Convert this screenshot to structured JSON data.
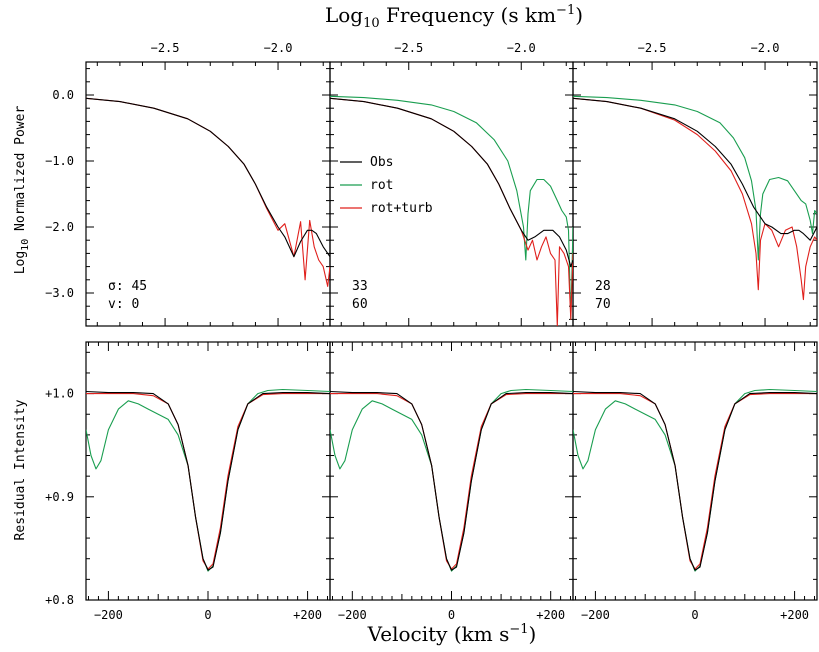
{
  "chart_data": {
    "type": "line",
    "top_axis_label": "Log10 Frequency (s km−1)",
    "top_axis_label_parts": {
      "pre": "Log",
      "sub": "10",
      "mid": " Frequency (s km",
      "sup": "−1",
      "post": ")"
    },
    "bottom_axis_label": "Velocity (km s−1)",
    "bottom_axis_label_parts": {
      "pre": "Velocity (km s",
      "sup": "−1",
      "post": ")"
    },
    "top_ylabel": "Log10 Normalized Power",
    "top_ylabel_parts": {
      "pre": "Log",
      "sub": "10",
      "post": " Normalized Power"
    },
    "bottom_ylabel": "Residual Intensity",
    "freq_xlim": [
      -2.85,
      -1.77
    ],
    "freq_xticks": [
      -2.5,
      -2.0
    ],
    "freq_xtick_labels": [
      "−2.5",
      "−2.0"
    ],
    "power_ylim": [
      -3.5,
      0.5
    ],
    "power_yticks": [
      0.0,
      -1.0,
      -2.0,
      -3.0
    ],
    "power_ytick_labels": [
      "0.0",
      "−1.0",
      "−2.0",
      "−3.0"
    ],
    "vel_xlim": [
      -245,
      245
    ],
    "vel_xticks": [
      -200,
      0,
      200
    ],
    "vel_xtick_labels": [
      "−200",
      "0",
      "+200"
    ],
    "intensity_ylim": [
      0.8,
      1.05
    ],
    "intensity_yticks": [
      0.8,
      0.9,
      1.0
    ],
    "intensity_ytick_labels": [
      "+0.8",
      "+0.9",
      "+1.0"
    ],
    "legend": {
      "placement": "middle panel, center-left",
      "entries": [
        {
          "label": "Obs",
          "color": "#000000"
        },
        {
          "label": "rot",
          "color": "#1a9e50"
        },
        {
          "label": "rot+turb",
          "color": "#e0201c"
        }
      ]
    },
    "panels": [
      {
        "param_labels": [
          "σ:",
          "v:"
        ],
        "sigma": "45",
        "v": "0",
        "power": {
          "obs": {
            "x": [
              -2.85,
              -2.7,
              -2.55,
              -2.4,
              -2.3,
              -2.22,
              -2.15,
              -2.1,
              -2.05,
              -2.0,
              -1.97,
              -1.93,
              -1.9,
              -1.87,
              -1.85,
              -1.83,
              -1.8,
              -1.77
            ],
            "y": [
              -0.05,
              -0.1,
              -0.2,
              -0.36,
              -0.55,
              -0.78,
              -1.05,
              -1.35,
              -1.7,
              -2.0,
              -2.15,
              -2.45,
              -2.22,
              -2.05,
              -2.05,
              -2.1,
              -2.3,
              -2.45
            ]
          },
          "rot_turb": {
            "x": [
              -2.85,
              -2.7,
              -2.55,
              -2.4,
              -2.3,
              -2.22,
              -2.15,
              -2.1,
              -2.05,
              -2.0,
              -1.97,
              -1.93,
              -1.9,
              -1.88,
              -1.86,
              -1.84,
              -1.82,
              -1.8,
              -1.78,
              -1.77
            ],
            "y": [
              -0.05,
              -0.1,
              -0.2,
              -0.36,
              -0.55,
              -0.78,
              -1.05,
              -1.35,
              -1.72,
              -2.05,
              -1.95,
              -2.45,
              -1.92,
              -2.8,
              -1.9,
              -2.3,
              -2.5,
              -2.6,
              -2.9,
              -2.6
            ]
          }
        },
        "profile": {
          "obs": {
            "x": [
              -245,
              -200,
              -150,
              -110,
              -80,
              -60,
              -40,
              -25,
              -10,
              0,
              10,
              25,
              40,
              60,
              80,
              110,
              150,
              200,
              245
            ],
            "y": [
              1.002,
              1.001,
              1.001,
              1.0,
              0.99,
              0.97,
              0.93,
              0.88,
              0.84,
              0.829,
              0.832,
              0.865,
              0.915,
              0.965,
              0.99,
              1.0,
              1.001,
              1.001,
              1.0
            ]
          },
          "rot": {
            "x": [
              -245,
              -235,
              -225,
              -215,
              -200,
              -180,
              -160,
              -140,
              -120,
              -100,
              -80,
              -60,
              -40,
              -25,
              -10,
              0,
              10,
              25,
              40,
              60,
              80,
              100,
              120,
              150,
              200,
              245
            ],
            "y": [
              0.965,
              0.94,
              0.927,
              0.935,
              0.965,
              0.985,
              0.993,
              0.99,
              0.985,
              0.98,
              0.975,
              0.96,
              0.93,
              0.88,
              0.84,
              0.828,
              0.833,
              0.865,
              0.915,
              0.965,
              0.99,
              1.0,
              1.003,
              1.004,
              1.003,
              1.002
            ]
          },
          "rot_turb": {
            "x": [
              -245,
              -200,
              -150,
              -110,
              -80,
              -60,
              -40,
              -25,
              -10,
              0,
              10,
              25,
              40,
              60,
              80,
              110,
              150,
              200,
              245
            ],
            "y": [
              1.0,
              1.0,
              1.0,
              0.998,
              0.99,
              0.97,
              0.93,
              0.88,
              0.838,
              0.83,
              0.835,
              0.87,
              0.92,
              0.968,
              0.99,
              0.999,
              1.0,
              1.0,
              1.0
            ]
          }
        }
      },
      {
        "param_labels": [
          "",
          ""
        ],
        "sigma": "33",
        "v": "60",
        "power": {
          "obs": {
            "x": [
              -2.85,
              -2.7,
              -2.55,
              -2.4,
              -2.3,
              -2.22,
              -2.15,
              -2.1,
              -2.05,
              -2.0,
              -1.97,
              -1.94,
              -1.9,
              -1.86,
              -1.83,
              -1.8,
              -1.78,
              -1.77
            ],
            "y": [
              -0.05,
              -0.1,
              -0.2,
              -0.36,
              -0.55,
              -0.78,
              -1.05,
              -1.35,
              -1.72,
              -2.05,
              -2.2,
              -2.15,
              -2.05,
              -2.05,
              -2.15,
              -2.35,
              -2.6,
              -2.5
            ]
          },
          "rot": {
            "x": [
              -2.85,
              -2.7,
              -2.55,
              -2.4,
              -2.3,
              -2.2,
              -2.12,
              -2.06,
              -2.02,
              -1.99,
              -1.98,
              -1.97,
              -1.96,
              -1.93,
              -1.9,
              -1.87,
              -1.84,
              -1.82,
              -1.8,
              -1.79,
              -1.78,
              -1.77
            ],
            "y": [
              -0.02,
              -0.04,
              -0.08,
              -0.15,
              -0.25,
              -0.42,
              -0.68,
              -1.0,
              -1.45,
              -2.0,
              -2.5,
              -1.8,
              -1.45,
              -1.28,
              -1.28,
              -1.38,
              -1.6,
              -1.75,
              -1.85,
              -2.05,
              -3.4,
              -2.0
            ]
          },
          "rot_turb": {
            "x": [
              -2.85,
              -2.7,
              -2.55,
              -2.4,
              -2.3,
              -2.22,
              -2.15,
              -2.1,
              -2.05,
              -2.0,
              -1.97,
              -1.95,
              -1.93,
              -1.91,
              -1.89,
              -1.87,
              -1.85,
              -1.84,
              -1.83,
              -1.81,
              -1.79,
              -1.78,
              -1.77
            ],
            "y": [
              -0.05,
              -0.1,
              -0.2,
              -0.36,
              -0.55,
              -0.78,
              -1.05,
              -1.35,
              -1.72,
              -2.05,
              -2.35,
              -2.2,
              -2.5,
              -2.3,
              -2.15,
              -2.4,
              -2.5,
              -3.5,
              -2.3,
              -2.4,
              -2.6,
              -3.4,
              -2.4
            ]
          }
        },
        "profile": {
          "obs": {
            "x": [
              -245,
              -200,
              -150,
              -110,
              -80,
              -60,
              -40,
              -25,
              -10,
              0,
              10,
              25,
              40,
              60,
              80,
              110,
              150,
              200,
              245
            ],
            "y": [
              1.002,
              1.001,
              1.001,
              1.0,
              0.99,
              0.97,
              0.93,
              0.88,
              0.84,
              0.829,
              0.832,
              0.865,
              0.915,
              0.965,
              0.99,
              1.0,
              1.001,
              1.001,
              1.0
            ]
          },
          "rot": {
            "x": [
              -245,
              -235,
              -225,
              -215,
              -200,
              -180,
              -160,
              -140,
              -120,
              -100,
              -80,
              -60,
              -40,
              -25,
              -10,
              0,
              10,
              25,
              40,
              60,
              80,
              100,
              120,
              150,
              200,
              245
            ],
            "y": [
              0.965,
              0.94,
              0.927,
              0.935,
              0.965,
              0.985,
              0.993,
              0.99,
              0.985,
              0.98,
              0.975,
              0.96,
              0.93,
              0.88,
              0.84,
              0.828,
              0.833,
              0.865,
              0.915,
              0.965,
              0.99,
              1.0,
              1.003,
              1.004,
              1.003,
              1.002
            ]
          },
          "rot_turb": {
            "x": [
              -245,
              -200,
              -150,
              -110,
              -80,
              -60,
              -40,
              -25,
              -10,
              0,
              10,
              25,
              40,
              60,
              80,
              110,
              150,
              200,
              245
            ],
            "y": [
              1.0,
              1.0,
              1.0,
              0.998,
              0.99,
              0.97,
              0.93,
              0.88,
              0.838,
              0.83,
              0.835,
              0.87,
              0.92,
              0.968,
              0.99,
              0.999,
              1.0,
              1.0,
              1.0
            ]
          }
        }
      },
      {
        "param_labels": [
          "",
          ""
        ],
        "sigma": "28",
        "v": "70",
        "power": {
          "obs": {
            "x": [
              -2.85,
              -2.7,
              -2.55,
              -2.4,
              -2.3,
              -2.22,
              -2.15,
              -2.1,
              -2.05,
              -2.0,
              -1.97,
              -1.93,
              -1.9,
              -1.87,
              -1.85,
              -1.83,
              -1.8,
              -1.77
            ],
            "y": [
              -0.05,
              -0.1,
              -0.2,
              -0.36,
              -0.55,
              -0.78,
              -1.05,
              -1.35,
              -1.7,
              -1.95,
              -2.0,
              -2.1,
              -2.1,
              -2.05,
              -2.05,
              -2.1,
              -2.2,
              -2.0
            ]
          },
          "rot": {
            "x": [
              -2.85,
              -2.7,
              -2.55,
              -2.4,
              -2.3,
              -2.2,
              -2.14,
              -2.09,
              -2.06,
              -2.04,
              -2.03,
              -2.02,
              -2.01,
              -1.98,
              -1.94,
              -1.9,
              -1.87,
              -1.84,
              -1.82,
              -1.8,
              -1.79,
              -1.78,
              -1.77
            ],
            "y": [
              -0.02,
              -0.04,
              -0.08,
              -0.15,
              -0.25,
              -0.42,
              -0.65,
              -0.95,
              -1.3,
              -1.75,
              -2.5,
              -1.8,
              -1.5,
              -1.28,
              -1.25,
              -1.3,
              -1.45,
              -1.6,
              -1.65,
              -1.9,
              -2.1,
              -1.75,
              -1.8
            ]
          },
          "rot_turb": {
            "x": [
              -2.85,
              -2.7,
              -2.55,
              -2.4,
              -2.3,
              -2.22,
              -2.15,
              -2.1,
              -2.06,
              -2.04,
              -2.03,
              -2.02,
              -2.0,
              -1.97,
              -1.94,
              -1.91,
              -1.88,
              -1.86,
              -1.84,
              -1.83,
              -1.82,
              -1.8,
              -1.78,
              -1.77
            ],
            "y": [
              -0.05,
              -0.1,
              -0.2,
              -0.38,
              -0.6,
              -0.85,
              -1.15,
              -1.5,
              -1.95,
              -2.4,
              -2.95,
              -2.2,
              -1.95,
              -2.05,
              -2.3,
              -2.05,
              -2.0,
              -2.3,
              -2.8,
              -3.1,
              -2.6,
              -2.3,
              -2.15,
              -2.2
            ]
          }
        },
        "profile": {
          "obs": {
            "x": [
              -245,
              -200,
              -150,
              -110,
              -80,
              -60,
              -40,
              -25,
              -10,
              0,
              10,
              25,
              40,
              60,
              80,
              110,
              150,
              200,
              245
            ],
            "y": [
              1.002,
              1.001,
              1.001,
              1.0,
              0.99,
              0.97,
              0.93,
              0.88,
              0.84,
              0.829,
              0.832,
              0.865,
              0.915,
              0.965,
              0.99,
              1.0,
              1.001,
              1.001,
              1.0
            ]
          },
          "rot": {
            "x": [
              -245,
              -235,
              -225,
              -215,
              -200,
              -180,
              -160,
              -140,
              -120,
              -100,
              -80,
              -60,
              -40,
              -25,
              -10,
              0,
              10,
              25,
              40,
              60,
              80,
              100,
              120,
              150,
              200,
              245
            ],
            "y": [
              0.965,
              0.94,
              0.927,
              0.935,
              0.965,
              0.985,
              0.993,
              0.99,
              0.985,
              0.98,
              0.975,
              0.96,
              0.93,
              0.88,
              0.84,
              0.828,
              0.833,
              0.865,
              0.915,
              0.965,
              0.99,
              1.0,
              1.003,
              1.004,
              1.003,
              1.002
            ]
          },
          "rot_turb": {
            "x": [
              -245,
              -200,
              -150,
              -110,
              -80,
              -60,
              -40,
              -25,
              -10,
              0,
              10,
              25,
              40,
              60,
              80,
              110,
              150,
              200,
              245
            ],
            "y": [
              1.0,
              1.0,
              1.0,
              0.998,
              0.99,
              0.97,
              0.93,
              0.88,
              0.838,
              0.83,
              0.835,
              0.87,
              0.92,
              0.968,
              0.99,
              0.999,
              1.0,
              1.0,
              1.0
            ]
          }
        }
      }
    ]
  }
}
